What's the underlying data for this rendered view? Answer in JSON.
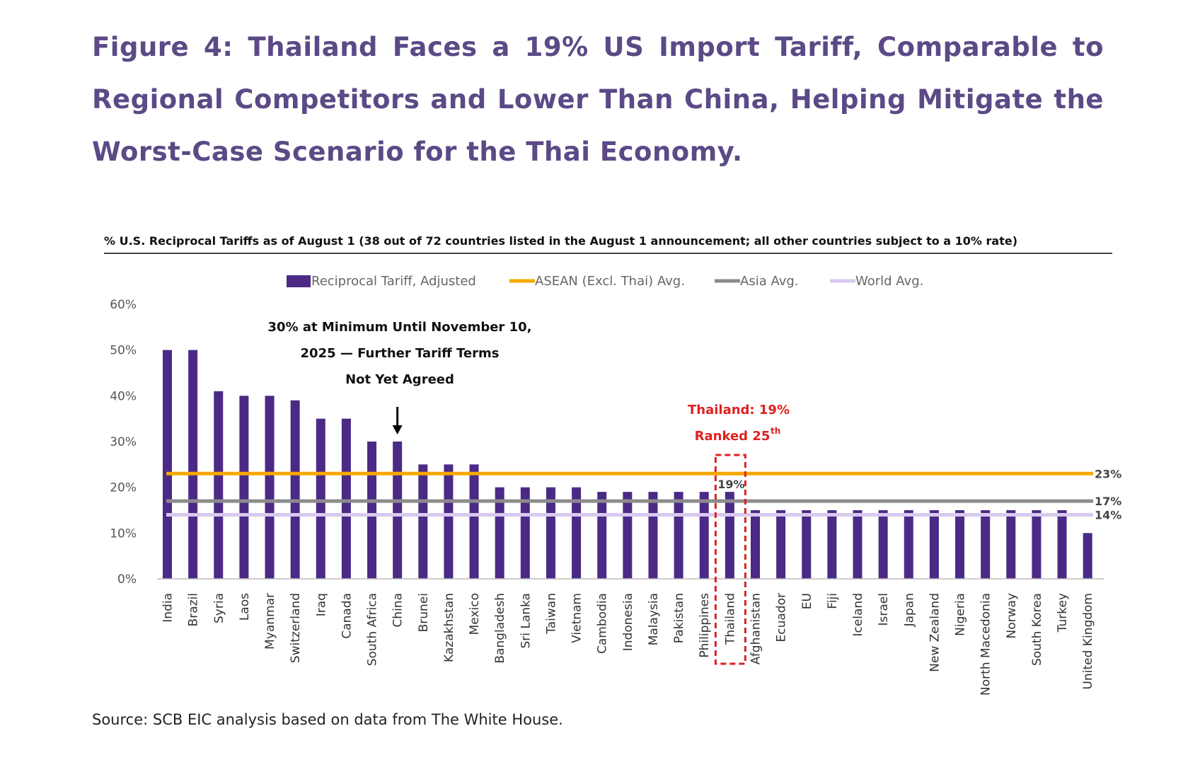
{
  "figure": {
    "title": "Figure 4: Thailand Faces a 19% US Import Tariff, Comparable to Regional Competitors and Lower Than China, Helping Mitigate the Worst-Case Scenario for the Thai Economy.",
    "source": "Source: SCB EIC analysis based on data from The White House."
  },
  "chart_data": {
    "type": "bar",
    "title": "% U.S. Reciprocal Tariffs as of August 1 (38 out of 72 countries listed in the August 1 announcement; all other countries subject to a 10% rate)",
    "xlabel": "",
    "ylabel": "",
    "ylim": [
      0,
      60
    ],
    "yticks": [
      "0%",
      "10%",
      "20%",
      "30%",
      "40%",
      "50%",
      "60%"
    ],
    "categories": [
      "India",
      "Brazil",
      "Syria",
      "Laos",
      "Myanmar",
      "Switzerland",
      "Iraq",
      "Canada",
      "South Africa",
      "China",
      "Brunei",
      "Kazakhstan",
      "Mexico",
      "Bangladesh",
      "Sri Lanka",
      "Taiwan",
      "Vietnam",
      "Cambodia",
      "Indonesia",
      "Malaysia",
      "Pakistan",
      "Philippines",
      "Thailand",
      "Afghanistan",
      "Ecuador",
      "EU",
      "Fiji",
      "Iceland",
      "Israel",
      "Japan",
      "New Zealand",
      "Nigeria",
      "North Macedonia",
      "Norway",
      "South Korea",
      "Turkey",
      "United Kingdom"
    ],
    "series": [
      {
        "name": "Reciprocal Tariff, Adjusted",
        "color": "#4b2a86",
        "values": [
          50,
          50,
          41,
          40,
          40,
          39,
          35,
          35,
          30,
          30,
          25,
          25,
          25,
          20,
          20,
          20,
          20,
          19,
          19,
          19,
          19,
          19,
          19,
          15,
          15,
          15,
          15,
          15,
          15,
          15,
          15,
          15,
          15,
          15,
          15,
          15,
          10
        ]
      }
    ],
    "reference_lines": [
      {
        "name": "ASEAN (Excl. Thai) Avg.",
        "value": 23,
        "label": "23%",
        "color": "#f5a800"
      },
      {
        "name": "Asia Avg.",
        "value": 17,
        "label": "17%",
        "color": "#8c8c8c"
      },
      {
        "name": "World Avg.",
        "value": 14,
        "label": "14%",
        "color": "#d9c8ef"
      }
    ],
    "legend_position": "top",
    "grid": false,
    "annotations": {
      "china_note": [
        "30% at Minimum Until November 10,",
        "2025 — Further Tariff Terms",
        "Not Yet Agreed"
      ],
      "thailand_line1": "Thailand: 19%",
      "thailand_line2": "Ranked 25",
      "thailand_superscript": "th",
      "thailand_bar_label": "19%",
      "highlight_color": "#e02020"
    }
  }
}
